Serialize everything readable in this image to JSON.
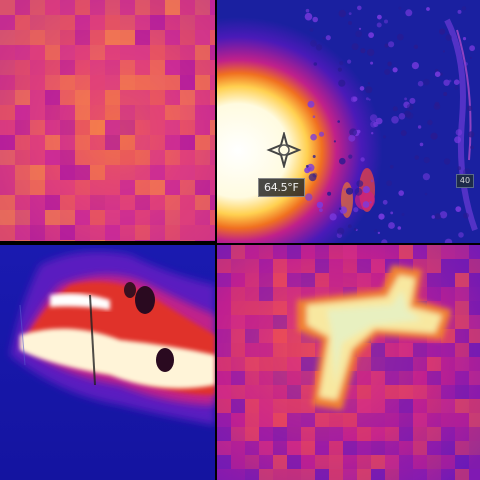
{
  "panels": [
    {
      "id": "top-left",
      "description_name": "pixelated-thermal-warm-area"
    },
    {
      "id": "top-right",
      "description_name": "thermal-camera-hot-spot"
    },
    {
      "id": "bottom-left",
      "description_name": "thermal-fire-line"
    },
    {
      "id": "bottom-right",
      "description_name": "pixelated-thermal-cross-shape"
    }
  ],
  "thermal_view": {
    "temperature_readout": "64.5°F",
    "side_indicator": "40"
  },
  "colors": {
    "cold": "#1a1aa8",
    "cool": "#5a1ab0",
    "mid": "#c2189a",
    "warm": "#e8385a",
    "hot": "#f5a040",
    "hottest": "#fff8d8"
  },
  "icons": {
    "reticle": "crosshair-icon"
  }
}
